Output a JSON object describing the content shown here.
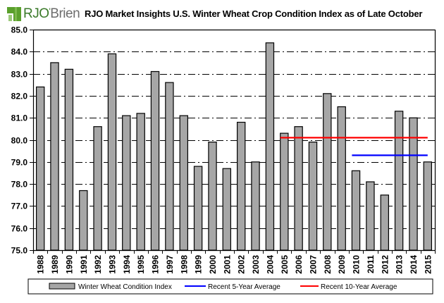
{
  "header": {
    "logo_text_main": "RJO",
    "logo_text_apos": "'",
    "logo_text_rest": "Brien",
    "title": "RJO Market Insights U.S. Winter Wheat Crop Condition Index as of Late October"
  },
  "colors": {
    "bar_fill": "#a6a6a6",
    "bar_stroke": "#000000",
    "five_year_avg": "#0000ff",
    "ten_year_avg": "#ff0000",
    "logo_green": "#3b7a2a",
    "logo_gray": "#6d6d6d"
  },
  "chart_data": {
    "type": "bar",
    "title": "RJO Market Insights U.S. Winter Wheat Crop Condition Index as of Late October",
    "xlabel": "",
    "ylabel": "",
    "ylim": [
      75.0,
      85.0
    ],
    "ytick_step": 1.0,
    "yticks": [
      "75.0",
      "76.0",
      "77.0",
      "78.0",
      "79.0",
      "80.0",
      "81.0",
      "82.0",
      "83.0",
      "84.0",
      "85.0"
    ],
    "grid": true,
    "grid_style": "dash-dot",
    "categories": [
      "1988",
      "1989",
      "1990",
      "1991",
      "1992",
      "1993",
      "1994",
      "1995",
      "1996",
      "1997",
      "1998",
      "1999",
      "2000",
      "2001",
      "2002",
      "2003",
      "2004",
      "2005",
      "2006",
      "2007",
      "2008",
      "2009",
      "2010",
      "2011",
      "2012",
      "2013",
      "2014",
      "2015"
    ],
    "series": [
      {
        "name": "Winter Wheat Condition Index",
        "kind": "bar",
        "values": [
          82.4,
          83.5,
          83.2,
          77.7,
          80.6,
          83.9,
          81.1,
          81.2,
          83.1,
          82.6,
          81.1,
          78.8,
          79.9,
          78.7,
          80.8,
          79.0,
          84.4,
          80.3,
          80.6,
          79.9,
          82.1,
          81.5,
          78.6,
          78.1,
          77.5,
          81.3,
          81.0,
          79.0
        ]
      },
      {
        "name": "Recent 5-Year Average",
        "kind": "hline",
        "value": 79.3,
        "from": "2010",
        "to": "2015"
      },
      {
        "name": "Recent 10-Year Average",
        "kind": "hline",
        "value": 80.1,
        "from": "2005",
        "to": "2015"
      }
    ],
    "legend": {
      "placement": "bottom",
      "entries": [
        "Winter Wheat Condition Index",
        "Recent 5-Year Average",
        "Recent 10-Year Average"
      ]
    }
  }
}
